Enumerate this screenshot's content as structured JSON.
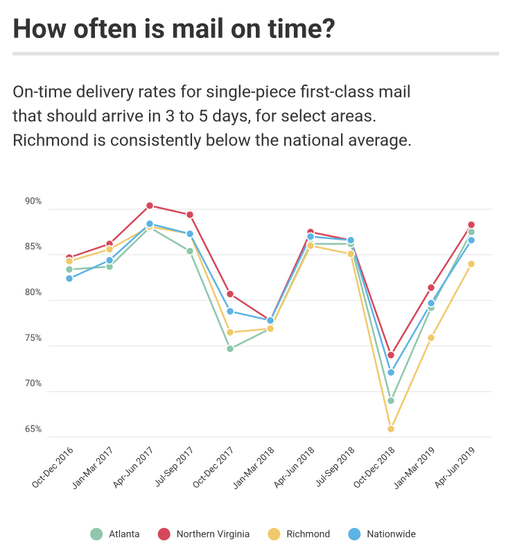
{
  "chart_data": {
    "type": "line",
    "title": "How often is mail on time?",
    "subtitle": [
      "On-time delivery rates for single-piece first-class mail",
      "that should arrive in 3 to 5 days, for select areas.",
      "Richmond is consistently below the national average."
    ],
    "categories": [
      "Oct-Dec 2016",
      "Jan-Mar 2017",
      "Apr-Jun 2017",
      "Jul-Sep 2017",
      "Oct-Dec 2017",
      "Jan-Mar 2018",
      "Apr-Jun 2018",
      "Jul-Sep 2018",
      "Oct-Dec 2018",
      "Jan-Mar 2019",
      "Apr-Jun 2019"
    ],
    "series": [
      {
        "name": "Atlanta",
        "color": "#8ec7ab",
        "values": [
          83.4,
          83.7,
          88.0,
          85.4,
          74.7,
          76.9,
          86.2,
          86.2,
          69.0,
          79.2,
          87.5
        ]
      },
      {
        "name": "Northern Virginia",
        "color": "#d6475a",
        "values": [
          84.7,
          86.2,
          90.4,
          89.4,
          80.7,
          77.8,
          87.5,
          86.6,
          74.0,
          81.4,
          88.3
        ]
      },
      {
        "name": "Richmond",
        "color": "#f0c96b",
        "values": [
          84.3,
          85.6,
          88.1,
          87.3,
          76.5,
          76.9,
          86.0,
          85.1,
          65.9,
          75.9,
          84.0
        ]
      },
      {
        "name": "Nationwide",
        "color": "#5cb3e4",
        "values": [
          82.4,
          84.4,
          88.4,
          87.3,
          78.8,
          77.8,
          87.0,
          86.6,
          72.1,
          79.7,
          86.6
        ]
      }
    ],
    "ylim": [
      65,
      90
    ],
    "yticks": [
      {
        "value": 65,
        "label": "65%"
      },
      {
        "value": 70,
        "label": "70%"
      },
      {
        "value": 75,
        "label": "75%"
      },
      {
        "value": 80,
        "label": "80%"
      },
      {
        "value": 85,
        "label": "85%"
      },
      {
        "value": 90,
        "label": "90%"
      }
    ],
    "grid": true,
    "legend": "bottom"
  }
}
